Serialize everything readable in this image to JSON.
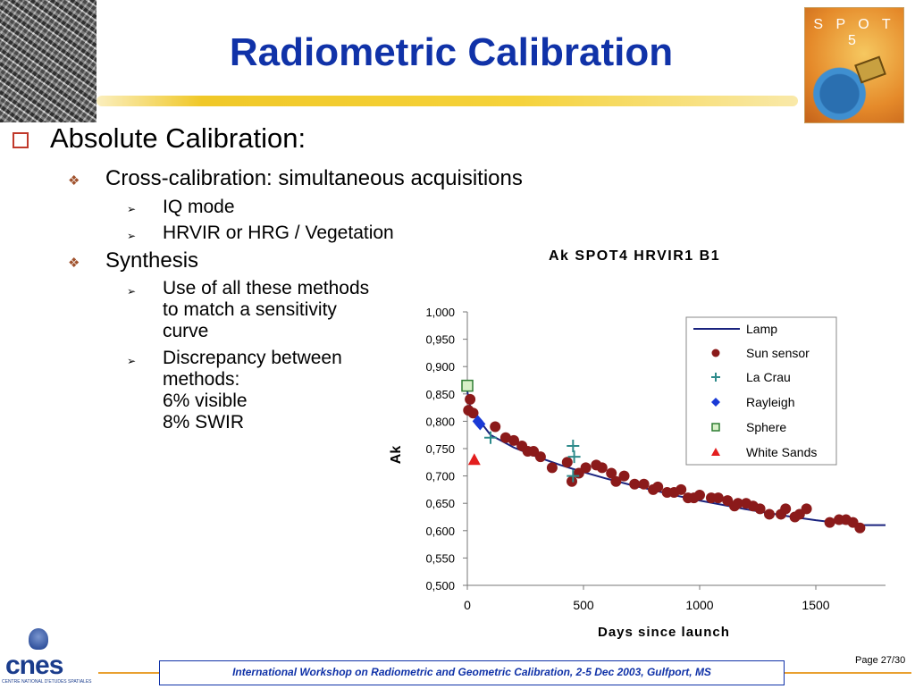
{
  "title": "Radiometric Calibration",
  "logo_text": "S P O T 5",
  "bullets": {
    "l1": "Absolute Calibration:",
    "cross": "Cross-calibration: simultaneous acquisitions",
    "iq": "IQ mode",
    "hrvir": "HRVIR or HRG / Vegetation",
    "synthesis": "Synthesis",
    "use1": "Use of all these methods",
    "use2": "to match a sensitivity",
    "use3": "curve",
    "disc1": "Discrepancy between",
    "disc2": "methods:",
    "disc3": "6% visible",
    "disc4": "8% SWIR"
  },
  "chart_data": {
    "type": "scatter",
    "title": "Ak SPOT4 HRVIR1 B1",
    "xlabel": "Days since launch",
    "ylabel": "Ak",
    "xlim": [
      0,
      1800
    ],
    "ylim": [
      0.5,
      1.0
    ],
    "x_ticks": [
      0,
      500,
      1000,
      1500
    ],
    "x_tick_labels": [
      "0",
      "500",
      "1000",
      "1500"
    ],
    "y_ticks": [
      0.5,
      0.55,
      0.6,
      0.65,
      0.7,
      0.75,
      0.8,
      0.85,
      0.9,
      0.95,
      1.0
    ],
    "y_tick_labels": [
      "0,500",
      "0,550",
      "0,600",
      "0,650",
      "0,700",
      "0,750",
      "0,800",
      "0,850",
      "0,900",
      "0,950",
      "1,000"
    ],
    "grid": false,
    "legend_position": "top-right",
    "colors": {
      "lamp": "#1a237e",
      "sun": "#8b1a1a",
      "crau": "#2e8b8b",
      "rayleigh": "#1a3ad6",
      "sphere": "#2e7d32",
      "white_sands": "#e31e1e"
    },
    "series": [
      {
        "name": "Lamp",
        "kind": "line",
        "x": [
          0,
          10,
          40,
          100,
          200,
          300,
          400,
          500,
          600,
          700,
          800,
          900,
          1000,
          1100,
          1200,
          1300,
          1400,
          1500,
          1600,
          1700,
          1800
        ],
        "y": [
          0.855,
          0.83,
          0.808,
          0.775,
          0.752,
          0.735,
          0.72,
          0.707,
          0.695,
          0.684,
          0.674,
          0.664,
          0.655,
          0.647,
          0.639,
          0.632,
          0.625,
          0.619,
          0.614,
          0.61,
          0.61
        ]
      },
      {
        "name": "Sun sensor",
        "kind": "circle",
        "x": [
          5,
          12,
          25,
          120,
          165,
          200,
          235,
          260,
          285,
          315,
          365,
          430,
          450,
          480,
          510,
          555,
          580,
          620,
          640,
          675,
          720,
          760,
          800,
          820,
          860,
          890,
          920,
          950,
          975,
          1000,
          1050,
          1080,
          1120,
          1150,
          1165,
          1200,
          1230,
          1260,
          1300,
          1350,
          1370,
          1410,
          1430,
          1460,
          1560,
          1600,
          1630,
          1660,
          1690
        ],
        "y": [
          0.82,
          0.84,
          0.815,
          0.79,
          0.77,
          0.765,
          0.755,
          0.745,
          0.745,
          0.735,
          0.715,
          0.725,
          0.69,
          0.705,
          0.715,
          0.72,
          0.715,
          0.705,
          0.69,
          0.7,
          0.685,
          0.685,
          0.675,
          0.68,
          0.67,
          0.67,
          0.675,
          0.66,
          0.66,
          0.665,
          0.66,
          0.66,
          0.655,
          0.645,
          0.65,
          0.65,
          0.645,
          0.64,
          0.63,
          0.63,
          0.64,
          0.625,
          0.63,
          0.64,
          0.615,
          0.62,
          0.62,
          0.615,
          0.605
        ]
      },
      {
        "name": "La Crau",
        "kind": "plus",
        "x": [
          100,
          455,
          460,
          455
        ],
        "y": [
          0.77,
          0.755,
          0.735,
          0.7
        ]
      },
      {
        "name": "Rayleigh",
        "kind": "diamond",
        "x": [
          45,
          55
        ],
        "y": [
          0.8,
          0.795
        ]
      },
      {
        "name": "Sphere",
        "kind": "square",
        "x": [
          0
        ],
        "y": [
          0.865
        ]
      },
      {
        "name": "White Sands",
        "kind": "triangle",
        "x": [
          30
        ],
        "y": [
          0.73
        ]
      }
    ]
  },
  "footer": {
    "text": "International Workshop on Radiometric and Geometric Calibration, 2-5 Dec 2003, Gulfport, MS",
    "page": "Page 27/30"
  },
  "cnes": {
    "word": "cnes",
    "sub": "CENTRE NATIONAL D'ETUDES SPATIALES"
  }
}
